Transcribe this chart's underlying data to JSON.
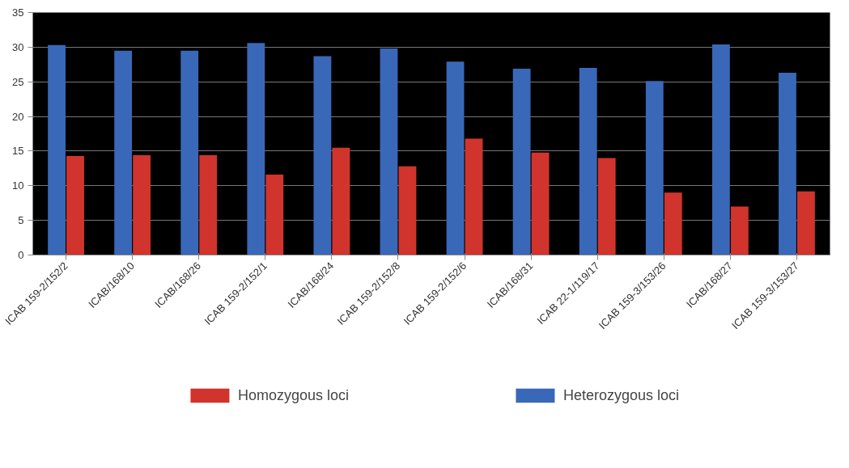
{
  "chart_data": {
    "type": "bar",
    "categories": [
      "ICAB 159-2/152/2",
      "ICAB/168/10",
      "ICAB/168/26",
      "ICAB 159-2/152/1",
      "ICAB/168/24",
      "ICAB 159-2/152/8",
      "ICAB 159-2/152/6",
      "ICAB/168/31",
      "ICAB 22-1/119/17",
      "ICAB 159-3/153/26",
      "ICAB/168/27",
      "ICAB 159-3/153/27"
    ],
    "series": [
      {
        "name": "Homozygous loci",
        "color": "#d0342c",
        "values": [
          14.3,
          14.4,
          14.4,
          11.6,
          15.5,
          12.8,
          16.8,
          14.8,
          14.0,
          9.0,
          7.0,
          9.2
        ]
      },
      {
        "name": "Heterozygous loci",
        "color": "#3a68b8",
        "values": [
          30.3,
          29.5,
          29.5,
          30.6,
          28.7,
          29.8,
          27.9,
          26.9,
          27.0,
          25.1,
          30.4,
          26.3
        ]
      }
    ],
    "ylim": [
      0,
      35
    ],
    "yticks": [
      0,
      5,
      10,
      15,
      20,
      25,
      30,
      35
    ],
    "grid": "y",
    "legend": "bottom"
  }
}
